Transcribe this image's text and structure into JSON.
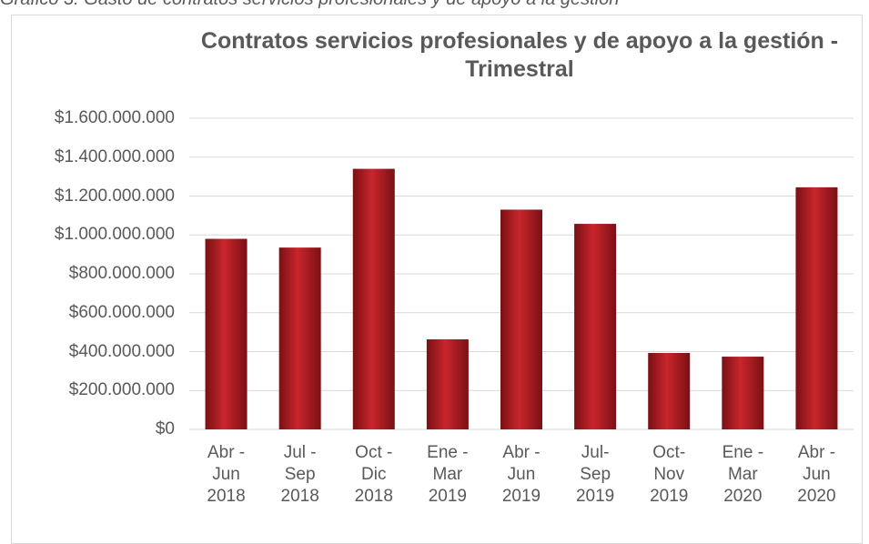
{
  "caption": "Gráfico 3. Gasto de contratos servicios profesionales y de apoyo a la gestión",
  "chart_data": {
    "type": "bar",
    "title": "Contratos servicios profesionales y de apoyo a la gestión - Trimestral",
    "categories": [
      "Abr - Jun 2018",
      "Jul - Sep 2018",
      "Oct - Dic 2018",
      "Ene - Mar 2019",
      "Abr - Jun 2019",
      "Jul- Sep 2019",
      "Oct- Nov 2019",
      "Ene - Mar 2020",
      "Abr - Jun 2020"
    ],
    "values": [
      980000000,
      935000000,
      1340000000,
      463000000,
      1130000000,
      1057000000,
      393000000,
      374000000,
      1245000000
    ],
    "color": "#c8262c",
    "ylim": [
      0,
      1600000000
    ],
    "yticks": [
      {
        "value": 0,
        "label": "$0"
      },
      {
        "value": 200000000,
        "label": "$200.000.000"
      },
      {
        "value": 400000000,
        "label": "$400.000.000"
      },
      {
        "value": 600000000,
        "label": "$600.000.000"
      },
      {
        "value": 800000000,
        "label": "$800.000.000"
      },
      {
        "value": 1000000000,
        "label": "$1.000.000.000"
      },
      {
        "value": 1200000000,
        "label": "$1.200.000.000"
      },
      {
        "value": 1400000000,
        "label": "$1.400.000.000"
      },
      {
        "value": 1600000000,
        "label": "$1.600.000.000"
      }
    ],
    "grid": true
  }
}
